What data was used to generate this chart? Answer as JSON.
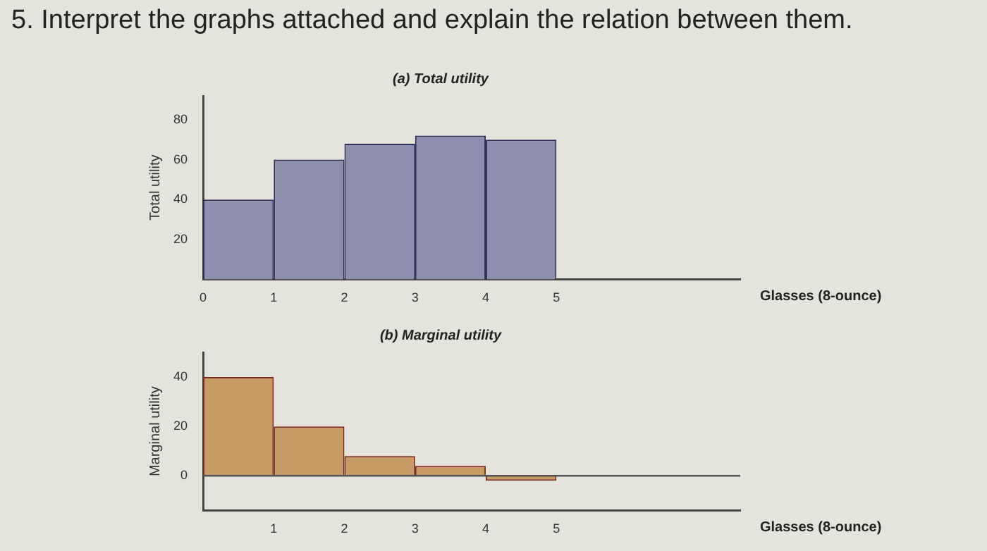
{
  "chart_data": [
    {
      "type": "histogram",
      "title": "(a) Total utility",
      "xlabel": "Glasses (8-ounce)",
      "ylabel": "Total utility",
      "annotations": [
        "5. Interpret the graphs attached and explain the relation between them."
      ],
      "bins": [
        0,
        1,
        2,
        3,
        4,
        5
      ],
      "values": [
        40,
        60,
        68,
        72,
        70
      ],
      "color": "#8e8fae",
      "xlim": [
        0,
        7.6
      ],
      "xticks": [
        0,
        1,
        2,
        3,
        4,
        5
      ],
      "ylim": [
        0,
        92
      ],
      "yticks": [
        20,
        40,
        60,
        80
      ],
      "grid": false,
      "legend": false
    },
    {
      "type": "histogram",
      "title": "(b) Marginal utility",
      "xlabel": "Glasses (8-ounce)",
      "ylabel": "Marginal utility",
      "bins": [
        0,
        1,
        2,
        3,
        4,
        5
      ],
      "values": [
        40,
        20,
        8,
        4,
        -2
      ],
      "color": "#c89a64",
      "xlim": [
        0,
        7.6
      ],
      "xticks": [
        1,
        2,
        3,
        4,
        5
      ],
      "ylim": [
        -14,
        50
      ],
      "yticks": [
        0,
        20,
        40
      ],
      "ref_lines": [
        {
          "axis": "y",
          "value": 0
        }
      ],
      "grid": false,
      "legend": false
    }
  ]
}
